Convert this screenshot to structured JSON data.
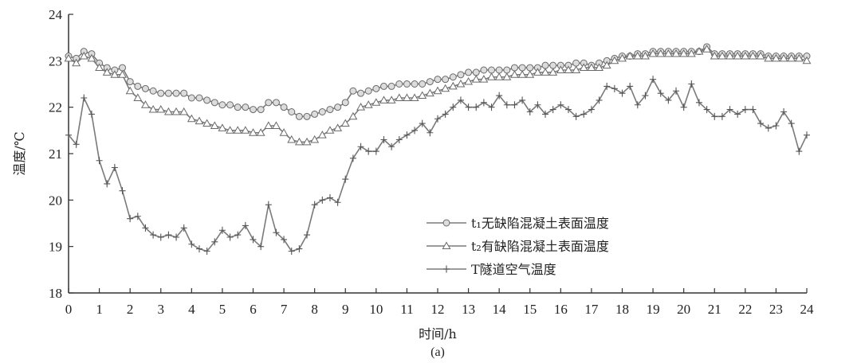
{
  "chart_data": {
    "type": "line",
    "xlabel": "时间/h",
    "ylabel": "温度/℃",
    "caption": "(a)",
    "xlim": [
      0,
      24
    ],
    "ylim": [
      18,
      24
    ],
    "xticks": [
      0,
      1,
      2,
      3,
      4,
      5,
      6,
      7,
      8,
      9,
      10,
      11,
      12,
      13,
      14,
      15,
      16,
      17,
      18,
      19,
      20,
      21,
      22,
      23,
      24
    ],
    "yticks": [
      18,
      19,
      20,
      21,
      22,
      23,
      24
    ],
    "grid": false,
    "legend_position": "lower-center",
    "series": [
      {
        "name": "t₁无缺陷混凝土表面温度",
        "marker": "circle",
        "x": [
          0,
          0.25,
          0.5,
          0.75,
          1,
          1.25,
          1.5,
          1.75,
          2,
          2.25,
          2.5,
          2.75,
          3,
          3.25,
          3.5,
          3.75,
          4,
          4.25,
          4.5,
          4.75,
          5,
          5.25,
          5.5,
          5.75,
          6,
          6.25,
          6.5,
          6.75,
          7,
          7.25,
          7.5,
          7.75,
          8,
          8.25,
          8.5,
          8.75,
          9,
          9.25,
          9.5,
          9.75,
          10,
          10.25,
          10.5,
          10.75,
          11,
          11.25,
          11.5,
          11.75,
          12,
          12.25,
          12.5,
          12.75,
          13,
          13.25,
          13.5,
          13.75,
          14,
          14.25,
          14.5,
          14.75,
          15,
          15.25,
          15.5,
          15.75,
          16,
          16.25,
          16.5,
          16.75,
          17,
          17.25,
          17.5,
          17.75,
          18,
          18.25,
          18.5,
          18.75,
          19,
          19.25,
          19.5,
          19.75,
          20,
          20.25,
          20.5,
          20.75,
          21,
          21.25,
          21.5,
          21.75,
          22,
          22.25,
          22.5,
          22.75,
          23,
          23.25,
          23.5,
          23.75,
          24
        ],
        "y": [
          23.1,
          23.05,
          23.2,
          23.15,
          22.95,
          22.85,
          22.8,
          22.85,
          22.55,
          22.45,
          22.4,
          22.35,
          22.3,
          22.3,
          22.3,
          22.3,
          22.2,
          22.2,
          22.15,
          22.1,
          22.05,
          22.05,
          22.0,
          22.0,
          21.95,
          21.95,
          22.1,
          22.1,
          22.0,
          21.9,
          21.8,
          21.8,
          21.85,
          21.9,
          21.95,
          22.0,
          22.1,
          22.35,
          22.3,
          22.35,
          22.4,
          22.45,
          22.45,
          22.5,
          22.5,
          22.5,
          22.5,
          22.55,
          22.6,
          22.6,
          22.65,
          22.7,
          22.75,
          22.75,
          22.8,
          22.8,
          22.8,
          22.8,
          22.85,
          22.85,
          22.85,
          22.85,
          22.9,
          22.9,
          22.9,
          22.9,
          22.95,
          22.95,
          22.9,
          22.95,
          23.0,
          23.05,
          23.1,
          23.1,
          23.15,
          23.15,
          23.2,
          23.2,
          23.2,
          23.2,
          23.2,
          23.2,
          23.2,
          23.3,
          23.15,
          23.15,
          23.15,
          23.15,
          23.15,
          23.15,
          23.15,
          23.1,
          23.1,
          23.1,
          23.1,
          23.1,
          23.1
        ]
      },
      {
        "name": "t₂有缺陷混凝土表面温度",
        "marker": "triangle",
        "x": [
          0,
          0.25,
          0.5,
          0.75,
          1,
          1.25,
          1.5,
          1.75,
          2,
          2.25,
          2.5,
          2.75,
          3,
          3.25,
          3.5,
          3.75,
          4,
          4.25,
          4.5,
          4.75,
          5,
          5.25,
          5.5,
          5.75,
          6,
          6.25,
          6.5,
          6.75,
          7,
          7.25,
          7.5,
          7.75,
          8,
          8.25,
          8.5,
          8.75,
          9,
          9.25,
          9.5,
          9.75,
          10,
          10.25,
          10.5,
          10.75,
          11,
          11.25,
          11.5,
          11.75,
          12,
          12.25,
          12.5,
          12.75,
          13,
          13.25,
          13.5,
          13.75,
          14,
          14.25,
          14.5,
          14.75,
          15,
          15.25,
          15.5,
          15.75,
          16,
          16.25,
          16.5,
          16.75,
          17,
          17.25,
          17.5,
          17.75,
          18,
          18.25,
          18.5,
          18.75,
          19,
          19.25,
          19.5,
          19.75,
          20,
          20.25,
          20.5,
          20.75,
          21,
          21.25,
          21.5,
          21.75,
          22,
          22.25,
          22.5,
          22.75,
          23,
          23.25,
          23.5,
          23.75,
          24
        ],
        "y": [
          23.05,
          22.95,
          23.1,
          23.05,
          22.85,
          22.75,
          22.7,
          22.7,
          22.35,
          22.2,
          22.05,
          21.95,
          21.95,
          21.9,
          21.9,
          21.9,
          21.75,
          21.7,
          21.65,
          21.6,
          21.55,
          21.5,
          21.5,
          21.5,
          21.45,
          21.45,
          21.6,
          21.6,
          21.45,
          21.3,
          21.25,
          21.25,
          21.3,
          21.4,
          21.5,
          21.55,
          21.65,
          21.8,
          22.0,
          22.05,
          22.1,
          22.15,
          22.15,
          22.2,
          22.2,
          22.2,
          22.25,
          22.3,
          22.35,
          22.4,
          22.45,
          22.5,
          22.55,
          22.6,
          22.6,
          22.65,
          22.65,
          22.65,
          22.7,
          22.7,
          22.7,
          22.75,
          22.75,
          22.75,
          22.8,
          22.8,
          22.8,
          22.85,
          22.85,
          22.85,
          22.9,
          23.0,
          23.05,
          23.1,
          23.1,
          23.1,
          23.15,
          23.15,
          23.15,
          23.15,
          23.15,
          23.15,
          23.2,
          23.25,
          23.1,
          23.1,
          23.1,
          23.1,
          23.1,
          23.1,
          23.1,
          23.05,
          23.05,
          23.05,
          23.05,
          23.05,
          23.0
        ]
      },
      {
        "name": "T隧道空气温度",
        "marker": "plus",
        "x": [
          0,
          0.25,
          0.5,
          0.75,
          1,
          1.25,
          1.5,
          1.75,
          2,
          2.25,
          2.5,
          2.75,
          3,
          3.25,
          3.5,
          3.75,
          4,
          4.25,
          4.5,
          4.75,
          5,
          5.25,
          5.5,
          5.75,
          6,
          6.25,
          6.5,
          6.75,
          7,
          7.25,
          7.5,
          7.75,
          8,
          8.25,
          8.5,
          8.75,
          9,
          9.25,
          9.5,
          9.75,
          10,
          10.25,
          10.5,
          10.75,
          11,
          11.25,
          11.5,
          11.75,
          12,
          12.25,
          12.5,
          12.75,
          13,
          13.25,
          13.5,
          13.75,
          14,
          14.25,
          14.5,
          14.75,
          15,
          15.25,
          15.5,
          15.75,
          16,
          16.25,
          16.5,
          16.75,
          17,
          17.25,
          17.5,
          17.75,
          18,
          18.25,
          18.5,
          18.75,
          19,
          19.25,
          19.5,
          19.75,
          20,
          20.25,
          20.5,
          20.75,
          21,
          21.25,
          21.5,
          21.75,
          22,
          22.25,
          22.5,
          22.75,
          23,
          23.25,
          23.5,
          23.75,
          24
        ],
        "y": [
          21.4,
          21.2,
          22.2,
          21.85,
          20.85,
          20.35,
          20.7,
          20.2,
          19.6,
          19.65,
          19.4,
          19.25,
          19.2,
          19.25,
          19.2,
          19.4,
          19.05,
          18.95,
          18.9,
          19.1,
          19.35,
          19.2,
          19.25,
          19.45,
          19.15,
          19.0,
          19.9,
          19.3,
          19.15,
          18.9,
          18.95,
          19.25,
          19.9,
          20.0,
          20.05,
          19.95,
          20.45,
          20.9,
          21.15,
          21.05,
          21.05,
          21.3,
          21.15,
          21.3,
          21.4,
          21.5,
          21.65,
          21.45,
          21.75,
          21.85,
          22.0,
          22.15,
          22.0,
          22.0,
          22.1,
          22.0,
          22.25,
          22.05,
          22.05,
          22.15,
          21.9,
          22.05,
          21.85,
          21.95,
          22.05,
          21.95,
          21.8,
          21.85,
          21.95,
          22.15,
          22.45,
          22.4,
          22.3,
          22.45,
          22.05,
          22.25,
          22.6,
          22.3,
          22.15,
          22.35,
          22.0,
          22.5,
          22.1,
          21.95,
          21.8,
          21.8,
          21.95,
          21.85,
          21.95,
          21.95,
          21.65,
          21.55,
          21.6,
          21.9,
          21.65,
          21.05,
          21.4
        ]
      }
    ]
  }
}
